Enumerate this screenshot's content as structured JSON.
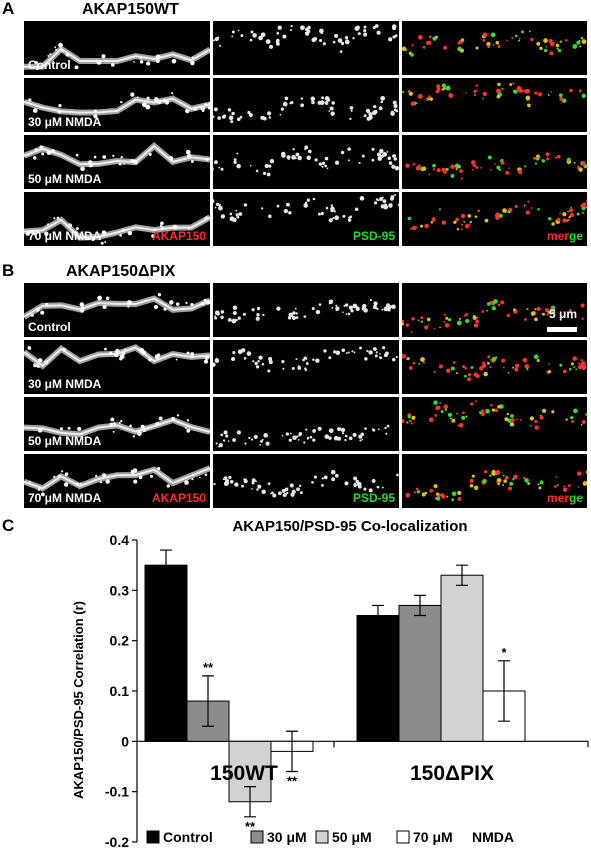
{
  "panel_a": {
    "letter": "A",
    "title": "AKAP150WT",
    "rows": [
      {
        "condition": "Control"
      },
      {
        "condition": "30 μM NMDA"
      },
      {
        "condition": "50 μM NMDA"
      },
      {
        "condition": "70 μM NMDA"
      }
    ],
    "channels": {
      "akap": "AKAP150",
      "psd": "PSD-95",
      "merge_me": "mer",
      "merge_ge": "ge"
    }
  },
  "panel_b": {
    "letter": "B",
    "title": "AKAP150ΔPIX",
    "rows": [
      {
        "condition": "Control"
      },
      {
        "condition": "30 μM NMDA"
      },
      {
        "condition": "50 μM NMDA"
      },
      {
        "condition": "70 μM NMDA"
      }
    ],
    "channels": {
      "akap": "AKAP150",
      "psd": "PSD-95",
      "merge_me": "mer",
      "merge_ge": "ge"
    },
    "scale_bar": "5 μm"
  },
  "panel_c": {
    "letter": "C",
    "chart_data": {
      "type": "bar",
      "title": "AKAP150/PSD-95 Co-localization",
      "ylabel": "AKAP150/PSD-95 Correlation (r)",
      "ylim": [
        -0.2,
        0.4
      ],
      "yticks": [
        "0.4",
        "0.3",
        "0.2",
        "0.1",
        "0",
        "-0.1",
        "-0.2"
      ],
      "ytick_values": [
        0.4,
        0.3,
        0.2,
        0.1,
        0,
        -0.1,
        -0.2
      ],
      "groups": [
        "150WT",
        "150ΔPIX"
      ],
      "series": [
        {
          "name": "Control",
          "color": "#000000",
          "values": [
            0.35,
            0.25
          ],
          "errors": [
            0.03,
            0.02
          ],
          "sig": [
            "",
            ""
          ]
        },
        {
          "name": "30 μM",
          "color": "#8c8c8c",
          "values": [
            0.08,
            0.27
          ],
          "errors": [
            0.05,
            0.02
          ],
          "sig": [
            "**",
            ""
          ]
        },
        {
          "name": "50 μM",
          "color": "#d2d2d2",
          "values": [
            -0.12,
            0.33
          ],
          "errors": [
            0.03,
            0.02
          ],
          "sig": [
            "**",
            ""
          ]
        },
        {
          "name": "70 μM",
          "color": "#ffffff",
          "values": [
            -0.02,
            0.1
          ],
          "errors": [
            0.04,
            0.06
          ],
          "sig": [
            "**",
            "*"
          ]
        }
      ],
      "legend_suffix": "NMDA",
      "legend_position": "bottom"
    }
  }
}
